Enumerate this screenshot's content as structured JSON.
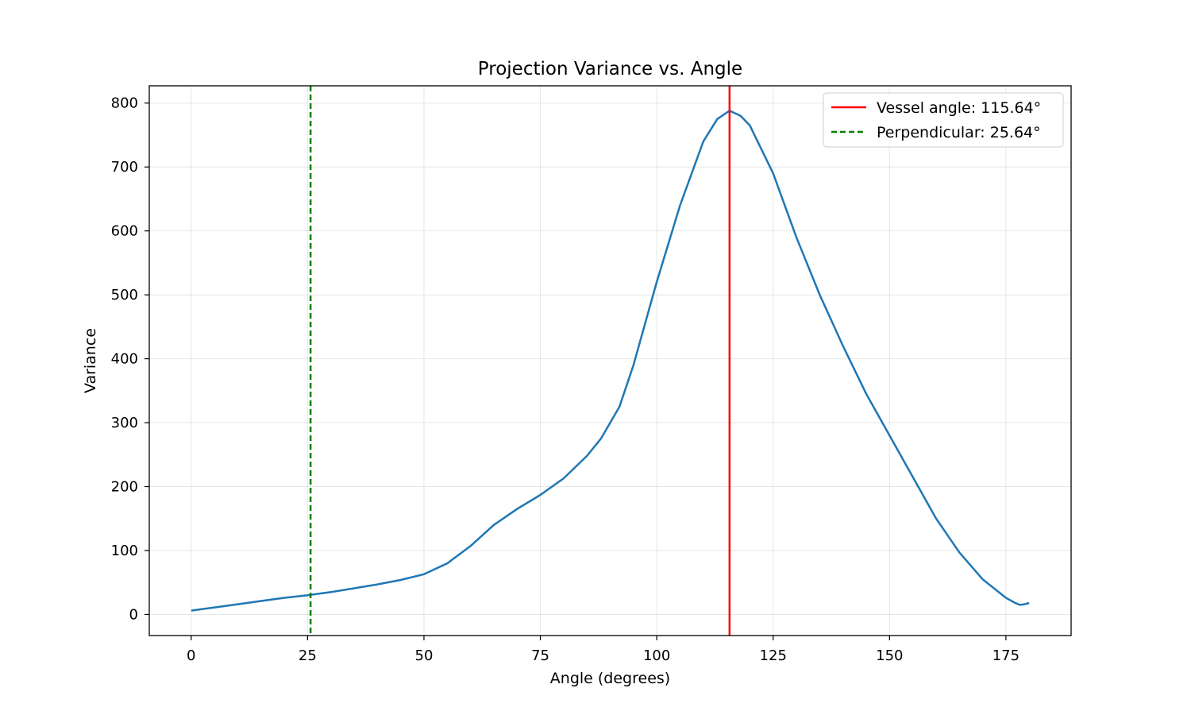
{
  "chart_data": {
    "type": "line",
    "title": "Projection Variance vs. Angle",
    "xlabel": "Angle (degrees)",
    "ylabel": "Variance",
    "xlim": [
      -9,
      189
    ],
    "ylim": [
      -33,
      827
    ],
    "xticks": [
      0,
      25,
      50,
      75,
      100,
      125,
      150,
      175
    ],
    "yticks": [
      0,
      100,
      200,
      300,
      400,
      500,
      600,
      700,
      800
    ],
    "grid": true,
    "legend_position": "top-right",
    "series": [
      {
        "color": "#1f77b4",
        "x": [
          0,
          5,
          10,
          15,
          20,
          25,
          30,
          35,
          40,
          45,
          50,
          55,
          60,
          65,
          70,
          75,
          80,
          85,
          88,
          90,
          92,
          95,
          100,
          105,
          110,
          113,
          115.64,
          118,
          120,
          125,
          130,
          135,
          140,
          145,
          150,
          155,
          160,
          165,
          170,
          175,
          177,
          178,
          179,
          180
        ],
        "y": [
          6,
          11,
          16,
          21,
          26,
          30,
          35,
          41,
          47,
          54,
          63,
          80,
          107,
          140,
          165,
          187,
          213,
          248,
          275,
          300,
          325,
          390,
          520,
          640,
          740,
          775,
          788,
          780,
          765,
          690,
          590,
          500,
          420,
          345,
          280,
          215,
          150,
          97,
          55,
          26,
          18,
          15,
          16,
          18
        ]
      }
    ],
    "vlines": [
      {
        "x": 115.64,
        "label": "Vessel angle: 115.64°",
        "color": "#ff0000",
        "style": "solid"
      },
      {
        "x": 25.64,
        "label": "Perpendicular: 25.64°",
        "color": "#008000",
        "style": "dashed"
      }
    ]
  }
}
